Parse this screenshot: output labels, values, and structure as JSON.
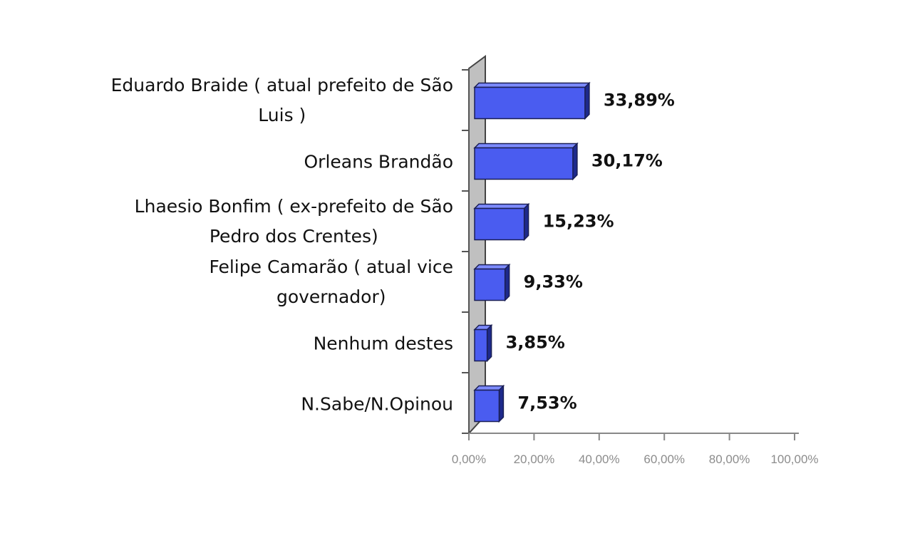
{
  "chart_data": {
    "type": "bar",
    "orientation": "horizontal",
    "style": "3d",
    "bar_color": "#4a5cf0",
    "bar_side_color": "#1e2a8c",
    "bar_top_color": "#7d8bff",
    "wall_color": "#c0c0c0",
    "categories": [
      [
        "Eduardo Braide ( atual prefeito de São",
        "Luis )"
      ],
      [
        "Orleans Brandão"
      ],
      [
        "Lhaesio Bonfim ( ex-prefeito de São",
        "Pedro dos Crentes)"
      ],
      [
        "Felipe Camarão ( atual vice",
        "governador)"
      ],
      [
        "Nenhum destes"
      ],
      [
        "N.Sabe/N.Opinou"
      ]
    ],
    "values": [
      33.89,
      30.17,
      15.23,
      9.33,
      3.85,
      7.53
    ],
    "value_labels": [
      "33,89%",
      "30,17%",
      "15,23%",
      "9,33%",
      "3,85%",
      "7,53%"
    ],
    "xlim": [
      0,
      100
    ],
    "x_ticks": [
      0,
      20,
      40,
      60,
      80,
      100
    ],
    "x_tick_labels": [
      "0,00%",
      "20,00%",
      "40,00%",
      "60,00%",
      "80,00%",
      "100,00%"
    ],
    "grid": false,
    "legend": "none"
  }
}
